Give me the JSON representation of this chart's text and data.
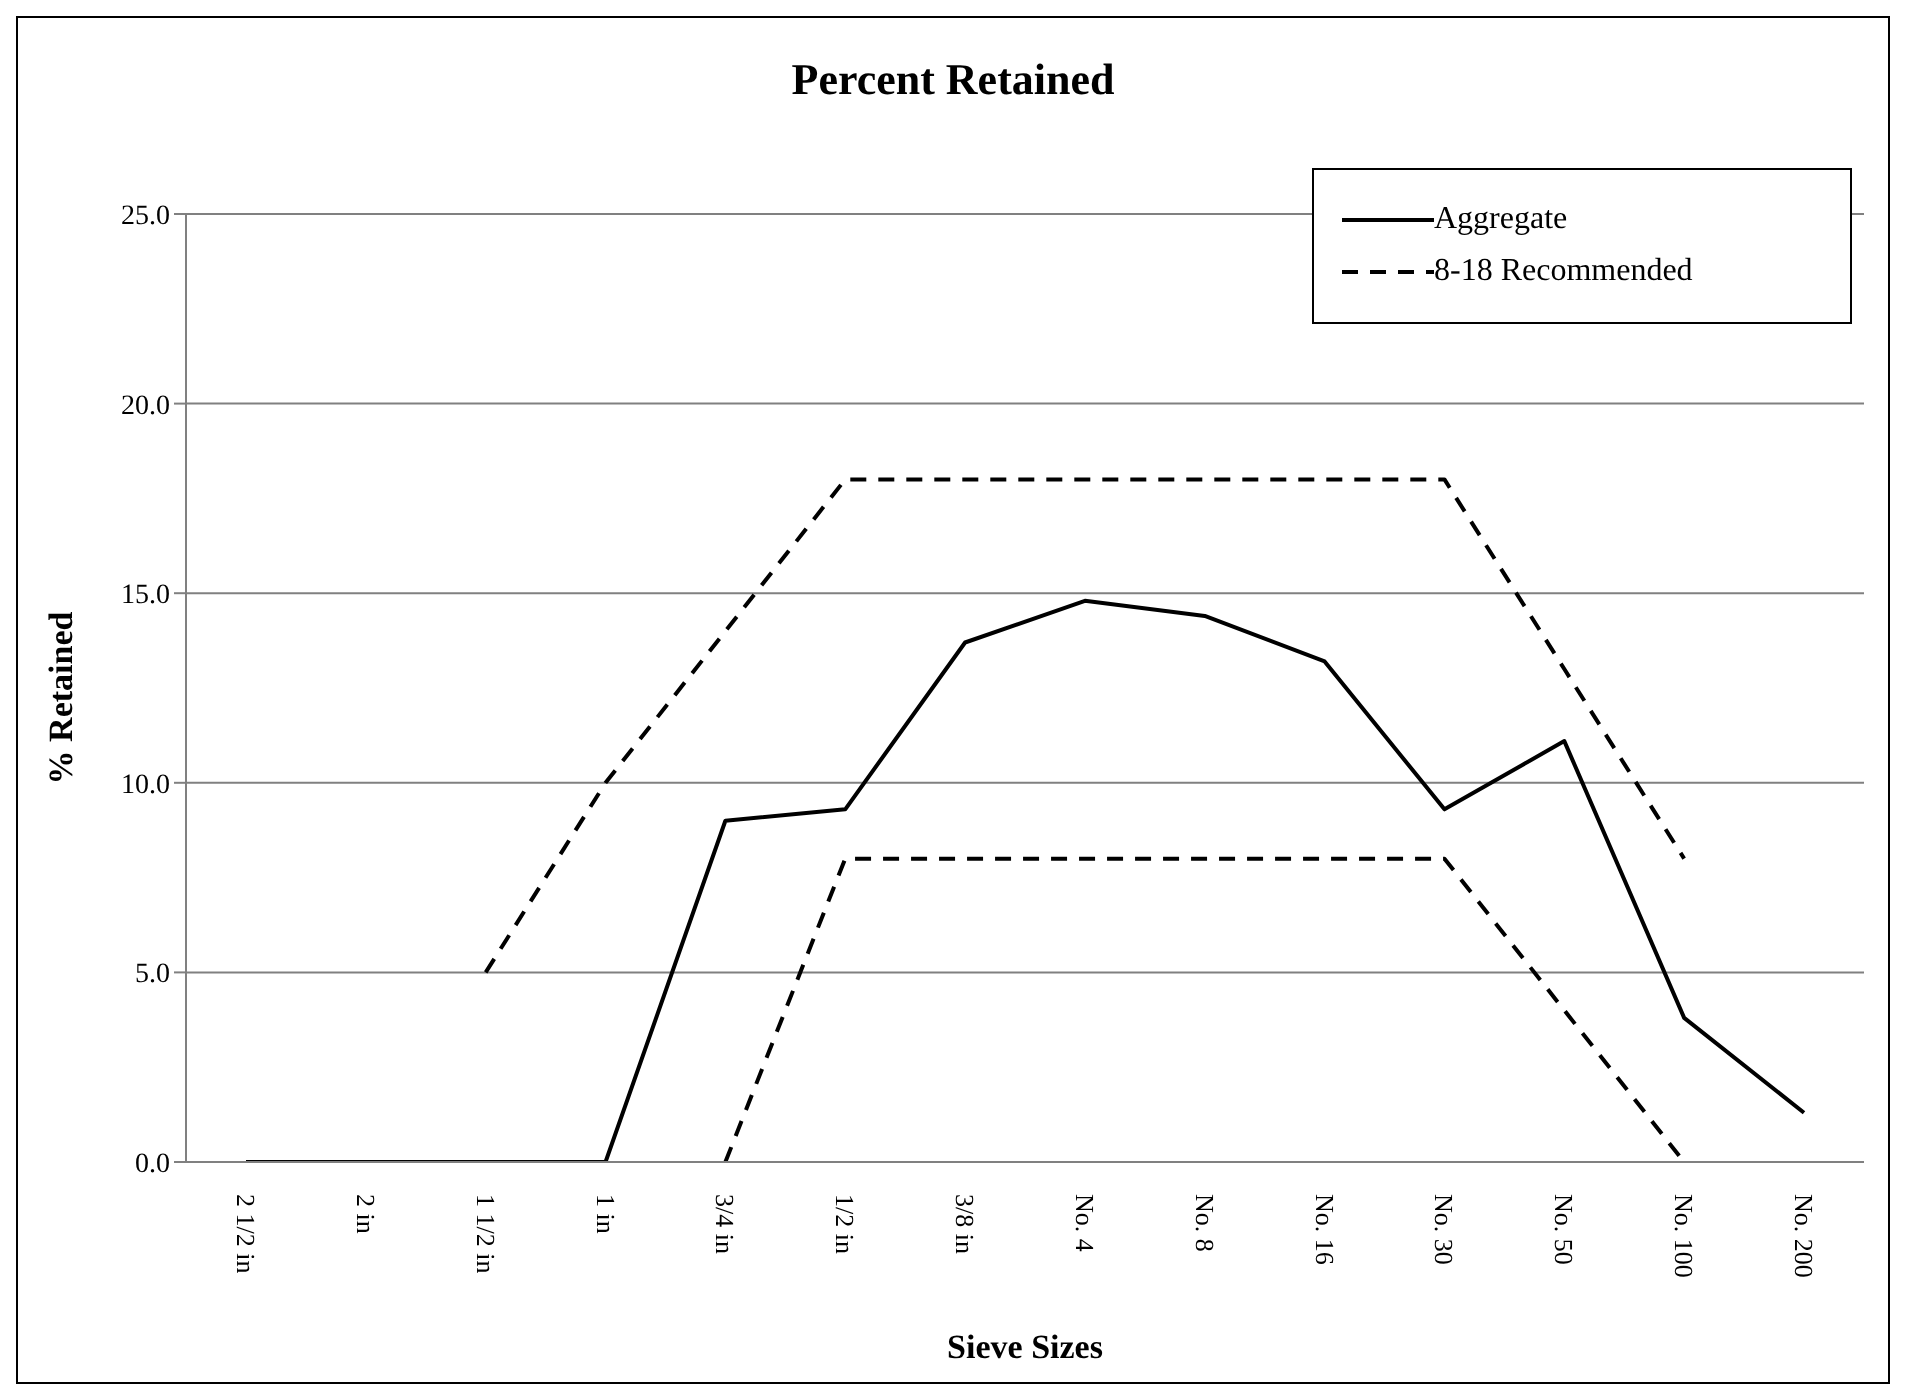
{
  "chart_data": {
    "type": "line",
    "title": "Percent Retained",
    "xlabel": "Sieve Sizes",
    "ylabel": "% Retained",
    "categories": [
      "2 1/2 in",
      "2 in",
      "1 1/2 in",
      "1 in",
      "3/4 in",
      "1/2 in",
      "3/8 in",
      "No. 4",
      "No. 8",
      "No. 16",
      "No. 30",
      "No. 50",
      "No. 100",
      "No. 200"
    ],
    "series": [
      {
        "name": "Aggregate",
        "color": "#000000",
        "line_style": "solid",
        "values": [
          0,
          0,
          0,
          0,
          9.0,
          9.3,
          13.7,
          14.8,
          14.4,
          13.2,
          9.3,
          11.1,
          3.8,
          1.3
        ]
      },
      {
        "name": "8-18 Recommended",
        "color": "#000000",
        "line_style": "dashed",
        "values": [
          null,
          null,
          5,
          10,
          14,
          18,
          18,
          18,
          18,
          18,
          18,
          13,
          8,
          null
        ]
      },
      {
        "color": "#000000",
        "line_style": "dashed",
        "values": [
          null,
          null,
          null,
          null,
          0,
          8,
          8,
          8,
          8,
          8,
          8,
          4,
          0,
          null
        ]
      }
    ],
    "ylim": [
      0,
      25
    ],
    "yticks": [
      {
        "value": 0,
        "label": "0.0"
      },
      {
        "value": 5,
        "label": "5.0"
      },
      {
        "value": 10,
        "label": "10.0"
      },
      {
        "value": 15,
        "label": "15.0"
      },
      {
        "value": 20,
        "label": "20.0"
      },
      {
        "value": 25,
        "label": "25.0"
      }
    ],
    "grid": "y",
    "legend": "top right",
    "marker": "none"
  }
}
